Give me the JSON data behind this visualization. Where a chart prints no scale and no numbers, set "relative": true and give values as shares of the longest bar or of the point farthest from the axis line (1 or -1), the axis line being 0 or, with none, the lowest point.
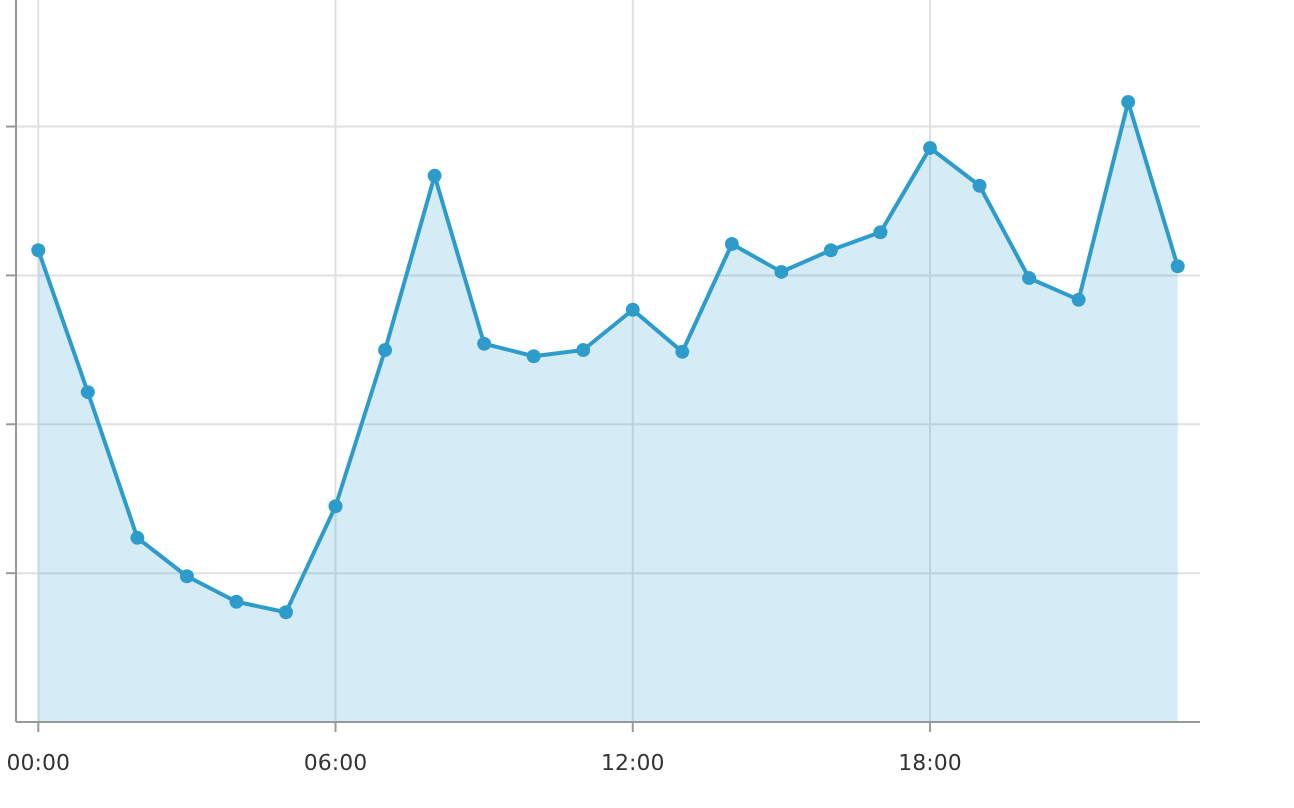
{
  "chart_data": {
    "type": "area",
    "relative": true,
    "x": [
      0,
      1,
      2,
      3,
      4,
      5,
      6,
      7,
      8,
      9,
      10,
      11,
      12,
      13,
      14,
      15,
      16,
      17,
      18,
      19,
      20,
      21,
      22,
      23
    ],
    "xlim": [
      -0.45,
      23.45
    ],
    "xticks": [
      {
        "value": 0,
        "label": "00:00"
      },
      {
        "value": 6,
        "label": "06:00"
      },
      {
        "value": 12,
        "label": "12:00"
      },
      {
        "value": 18,
        "label": "18:00"
      }
    ],
    "series": [
      {
        "color": "#2e9ccb",
        "values": [
          0.761,
          0.532,
          0.297,
          0.235,
          0.194,
          0.177,
          0.348,
          0.6,
          0.881,
          0.61,
          0.59,
          0.6,
          0.665,
          0.597,
          0.771,
          0.726,
          0.761,
          0.79,
          0.926,
          0.865,
          0.716,
          0.681,
          1,
          0.735
        ]
      }
    ],
    "grid": true,
    "marker": "circle"
  }
}
